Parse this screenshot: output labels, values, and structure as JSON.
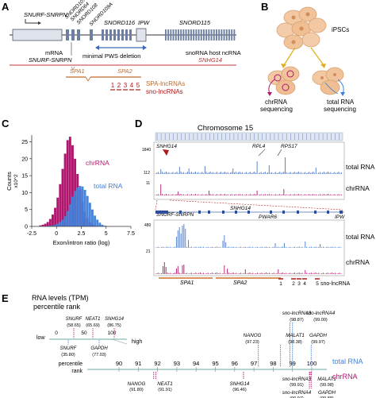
{
  "panels": {
    "A": {
      "letter": "A",
      "gene_labels": {
        "snurf": "SNURF-SNRPN",
        "snord107": "SNORD107",
        "snord64": "SNORD64",
        "snord108": "SNORD108",
        "snord109a": "SNORD109A",
        "snord116": "SNORD116",
        "ipw": "IPW",
        "snord115": "SNORD115"
      },
      "mrna_label": "mRNA",
      "mrna_gene": "SNURF-SNRPN",
      "deletion_label": "minimal PWS deletion",
      "host_label": "snoRNA host ncRNA",
      "host_gene": "SNHG14",
      "spa1": "SPA1",
      "spa2": "SPA2",
      "sno_numbers": [
        "1",
        "2",
        "3",
        "4",
        "5"
      ],
      "spa_lnc_label": "SPA-lncRNAs",
      "sno_lnc_label": "sno-lncRNAs"
    },
    "B": {
      "letter": "B",
      "ipsc_label": "iPSCs",
      "chr_label_line1": "chrRNA",
      "chr_label_line2": "sequencing",
      "total_label_line1": "total RNA",
      "total_label_line2": "sequencing"
    },
    "C": {
      "letter": "C"
    },
    "D": {
      "letter": "D",
      "chromosome_title": "Chromosome 15",
      "top_genes": {
        "snhg14": "SNHG14",
        "rpl4": "RPL4",
        "rps17": "RPS17"
      },
      "top_ticks": {
        "total_max": "1840",
        "total_min": "112",
        "chr_max": "11"
      },
      "track_total": "total RNA",
      "track_chr": "chrRNA",
      "zoom_genes": {
        "snurf": "SNURF-SNRPN",
        "snhg14": "SNHG14",
        "pwar6": "PWAR6",
        "ipw": "IPW"
      },
      "zoom_ticks": {
        "total_max": "480",
        "chr_max": "21"
      },
      "spa1": "SPA1",
      "spa2": "SPA2",
      "sno_numbers": [
        "1",
        "2",
        "3",
        "4",
        "5"
      ],
      "sno_label": "sno-lncRNA"
    },
    "E": {
      "letter": "E",
      "title_line1": "RNA levels (TPM)",
      "title_line2": "percentile rank",
      "mini_axis": {
        "low": "low",
        "high": "high",
        "ticks": [
          "0",
          "50",
          "100"
        ]
      },
      "mini_labels": [
        {
          "name": "SNURF",
          "value": "(58.65)"
        },
        {
          "name": "NEAT1",
          "value": "(65.69)"
        },
        {
          "name": "SNHG14",
          "value": "(86.75)"
        },
        {
          "name": "SNURF",
          "value": "(35.80)"
        },
        {
          "name": "GAPDH",
          "value": "(77.03)"
        }
      ],
      "axis_label_line1": "percentile",
      "axis_label_line2": "rank",
      "axis_ticks": [
        "90",
        "91",
        "92",
        "93",
        "94",
        "95",
        "96",
        "97",
        "98",
        "99",
        "100"
      ],
      "total_label": "total RNA",
      "chr_label": "chrRNA",
      "total_markers": [
        {
          "name": "NANOG",
          "value": "(97.23)"
        },
        {
          "name": "sno-lncRNA3",
          "value": "(98.87)"
        },
        {
          "name": "sno-lncRNA4",
          "value": "(99.00)"
        },
        {
          "name": "MALAT1",
          "value": "(98.38)"
        },
        {
          "name": "GAPDH",
          "value": "(99.97)"
        }
      ],
      "chr_markers": [
        {
          "name": "NANOG",
          "value": "(91.80)"
        },
        {
          "name": "NEAT1",
          "value": "(91.91)"
        },
        {
          "name": "SNHG14",
          "value": "(96.46)"
        },
        {
          "name": "MALAT1",
          "value": "(99.98)"
        },
        {
          "name": "GAPDH",
          "value": "(99.88)"
        },
        {
          "name": "sno-lncRNA3",
          "value": "(99.91)"
        },
        {
          "name": "sno-lncRNA4",
          "value": "(99.97)"
        }
      ]
    }
  },
  "colors": {
    "total": "#3f7fd9",
    "chr": "#b0166e",
    "spa": "#d0702a",
    "sno": "#b01818",
    "gene_box": "#6f7fa3",
    "track_blue": "#4a78c8",
    "axis_teal": "#9cc7c4"
  },
  "chart_data": {
    "type": "histogram",
    "title": "",
    "xlabel": "Exon/intron ratio (log)",
    "ylabel": "Counts",
    "ylabel_unit": "x10^2",
    "xlim": [
      -2.5,
      7.5
    ],
    "ylim": [
      0,
      27
    ],
    "x_ticks": [
      "-2.5",
      "0",
      "2.5",
      "5",
      "7.5"
    ],
    "y_ticks": [
      "0",
      "5",
      "10",
      "15",
      "20",
      "25"
    ],
    "bin_edges": [
      -1.75,
      -1.5,
      -1.25,
      -1.0,
      -0.75,
      -0.5,
      -0.25,
      0.0,
      0.25,
      0.5,
      0.75,
      1.0,
      1.25,
      1.5,
      1.75,
      2.0,
      2.25,
      2.5,
      2.75,
      3.0,
      3.25,
      3.5,
      3.75,
      4.0,
      4.25,
      4.5,
      4.75,
      5.0,
      5.25
    ],
    "series": [
      {
        "name": "chrRNA",
        "values": [
          0.3,
          0.5,
          0.8,
          1.3,
          2.2,
          3.5,
          5.5,
          8.5,
          12.5,
          17.0,
          21.5,
          25.5,
          26.5,
          24.0,
          20.0,
          15.5,
          11.0,
          7.2,
          4.3,
          2.5,
          1.3,
          0.6,
          0.3,
          0.1,
          0.05,
          0.0,
          0.0,
          0.0
        ]
      },
      {
        "name": "total RNA",
        "values": [
          0.0,
          0.0,
          0.0,
          0.1,
          0.2,
          0.3,
          0.5,
          0.8,
          1.3,
          2.0,
          3.0,
          4.5,
          6.5,
          8.8,
          10.5,
          11.5,
          12.0,
          11.8,
          10.8,
          9.0,
          7.0,
          5.0,
          3.2,
          2.0,
          1.1,
          0.5,
          0.2,
          0.1
        ]
      }
    ]
  }
}
